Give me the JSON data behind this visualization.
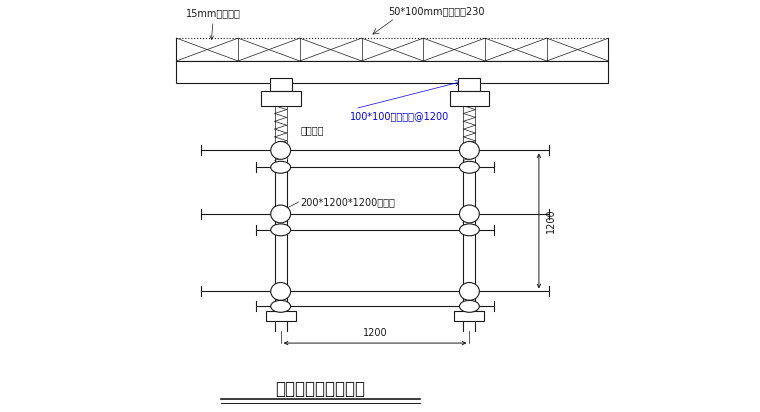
{
  "title": "顶板模板支设体系图",
  "label_15mm": "15mm厚多层板",
  "label_50x100": "50*100mm方木间距230",
  "label_100x100": "100*100方木间距@1200",
  "label_adjustable": "可调扯撑",
  "label_200x1200": "200*1200*1200碗扣架",
  "label_1200_h": "1200",
  "label_1200_w": "1200",
  "bg_color": "#ffffff",
  "line_color": "#1a1a1a",
  "dim_color": "#1a1a1a",
  "text_color": "#1a1a1a",
  "annotation_color": "#0000ff",
  "figsize": [
    7.6,
    4.12
  ],
  "dpi": 100
}
